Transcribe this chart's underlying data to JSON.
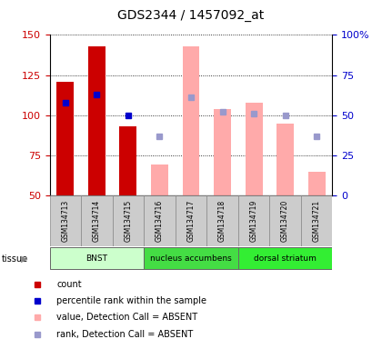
{
  "title": "GDS2344 / 1457092_at",
  "samples": [
    "GSM134713",
    "GSM134714",
    "GSM134715",
    "GSM134716",
    "GSM134717",
    "GSM134718",
    "GSM134719",
    "GSM134720",
    "GSM134721"
  ],
  "count_values": [
    121,
    143,
    93,
    null,
    null,
    null,
    null,
    null,
    null
  ],
  "rank_pct_present": [
    58,
    63,
    50,
    null,
    null,
    null,
    null,
    null,
    null
  ],
  "absent_value": [
    null,
    null,
    null,
    69,
    143,
    104,
    108,
    95,
    65
  ],
  "absent_rank_pct": [
    null,
    null,
    null,
    37,
    61,
    52,
    51,
    50,
    37
  ],
  "detection_call": [
    "P",
    "P",
    "P",
    "A",
    "A",
    "A",
    "A",
    "A",
    "A"
  ],
  "ylim_left": [
    50,
    150
  ],
  "ylim_right": [
    0,
    100
  ],
  "yticks_left": [
    50,
    75,
    100,
    125,
    150
  ],
  "yticks_right": [
    0,
    25,
    50,
    75,
    100
  ],
  "tissue_groups": [
    {
      "label": "BNST",
      "start": 0,
      "end": 3,
      "color": "#ccffcc"
    },
    {
      "label": "nucleus accumbens",
      "start": 3,
      "end": 6,
      "color": "#44dd44"
    },
    {
      "label": "dorsal striatum",
      "start": 6,
      "end": 9,
      "color": "#33ee33"
    }
  ],
  "bar_color_present": "#cc0000",
  "bar_color_absent": "#ffaaaa",
  "dot_color_present": "#0000cc",
  "dot_color_absent": "#9999cc",
  "tick_color_left": "#cc0000",
  "tick_color_right": "#0000cc"
}
